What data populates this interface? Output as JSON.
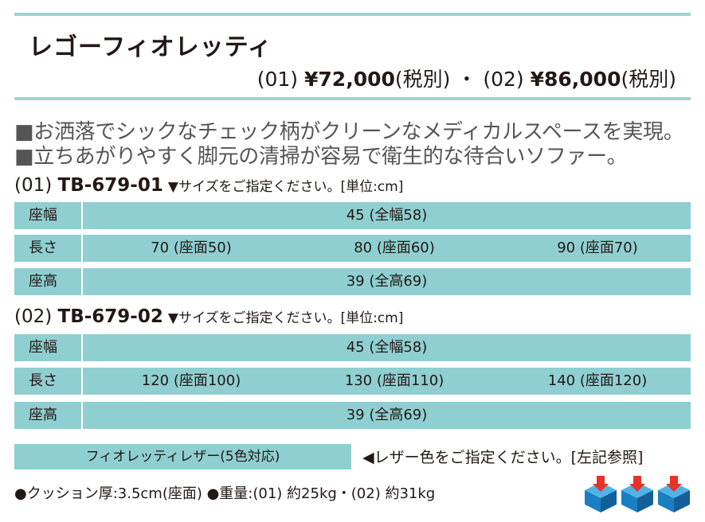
{
  "header": {
    "title": "レゴーフィオレッティ",
    "price_parts": {
      "code1": "(01)",
      "price1": "¥72,000",
      "tax1": "(税別)",
      "separator": "・",
      "code2": "(02)",
      "price2": "¥86,000",
      "tax2": "(税別)"
    }
  },
  "features": [
    "■お洒落でシックなチェック柄がクリーンなメディカルスペースを実現。",
    "■立ちあがりやすく脚元の清掃が容易で衛生的な待合いソファー。"
  ],
  "models": [
    {
      "code_prefix": "(01)",
      "code": "TB-679-01",
      "note": "▼サイズをご指定ください。[単位:cm]",
      "rows": [
        {
          "label": "座幅",
          "values": [
            "45 (全幅58)"
          ]
        },
        {
          "label": "長さ",
          "values": [
            "70 (座面50)",
            "80 (座面60)",
            "90 (座面70)"
          ]
        },
        {
          "label": "座高",
          "values": [
            "39 (全高69)"
          ]
        }
      ]
    },
    {
      "code_prefix": "(02)",
      "code": "TB-679-02",
      "note": "▼サイズをご指定ください。[単位:cm]",
      "rows": [
        {
          "label": "座幅",
          "values": [
            "45 (全幅58)"
          ]
        },
        {
          "label": "長さ",
          "values": [
            "120 (座面100)",
            "130 (座面110)",
            "140 (座面120)"
          ]
        },
        {
          "label": "座高",
          "values": [
            "39 (全高69)"
          ]
        }
      ]
    }
  ],
  "leather": {
    "box_text": "フィオレッティレザー(5色対応)",
    "note": "◀レザー色をご指定ください。[左記参照]"
  },
  "specs_note": "●クッション厚:3.5cm(座面) ●重量:(01) 約25kg・(02) 約31kg",
  "icons": {
    "delivery_cubes": "box-with-down-arrow-icon",
    "count": 3,
    "cube_color": "#1a7fc1",
    "arrow_color": "#e6332a"
  },
  "colors": {
    "accent_teal": "#8fcfd1",
    "rule_teal": "#9fd2d4",
    "text": "#231815"
  }
}
